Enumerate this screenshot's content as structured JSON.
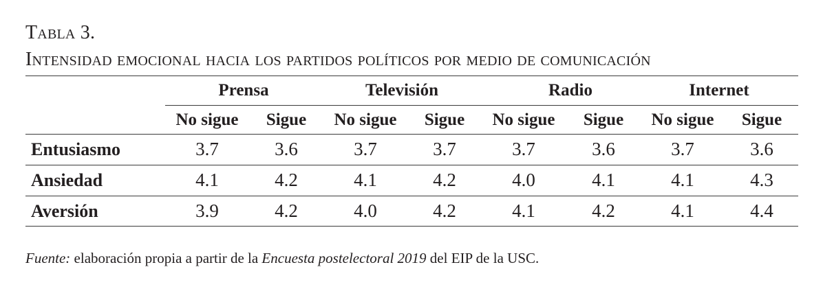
{
  "caption": {
    "number": "Tabla 3.",
    "title": "Intensidad emocional hacia los partidos políticos por medio de comunicación"
  },
  "table": {
    "media": [
      "Prensa",
      "Televisión",
      "Radio",
      "Internet"
    ],
    "subheaders": [
      "No sigue",
      "Sigue",
      "No sigue",
      "Sigue",
      "No sigue",
      "Sigue",
      "No sigue",
      "Sigue"
    ],
    "rows": [
      {
        "label": "Entusiasmo",
        "values": [
          "3.7",
          "3.6",
          "3.7",
          "3.7",
          "3.7",
          "3.6",
          "3.7",
          "3.6"
        ]
      },
      {
        "label": "Ansiedad",
        "values": [
          "4.1",
          "4.2",
          "4.1",
          "4.2",
          "4.0",
          "4.1",
          "4.1",
          "4.3"
        ]
      },
      {
        "label": "Aversión",
        "values": [
          "3.9",
          "4.2",
          "4.0",
          "4.2",
          "4.1",
          "4.2",
          "4.1",
          "4.4"
        ]
      }
    ]
  },
  "source": {
    "label": "Fuente:",
    "text1": " elaboración propia a partir de la ",
    "survey": "Encuesta postelectoral 2019",
    "text2": " del EIP de la USC."
  }
}
